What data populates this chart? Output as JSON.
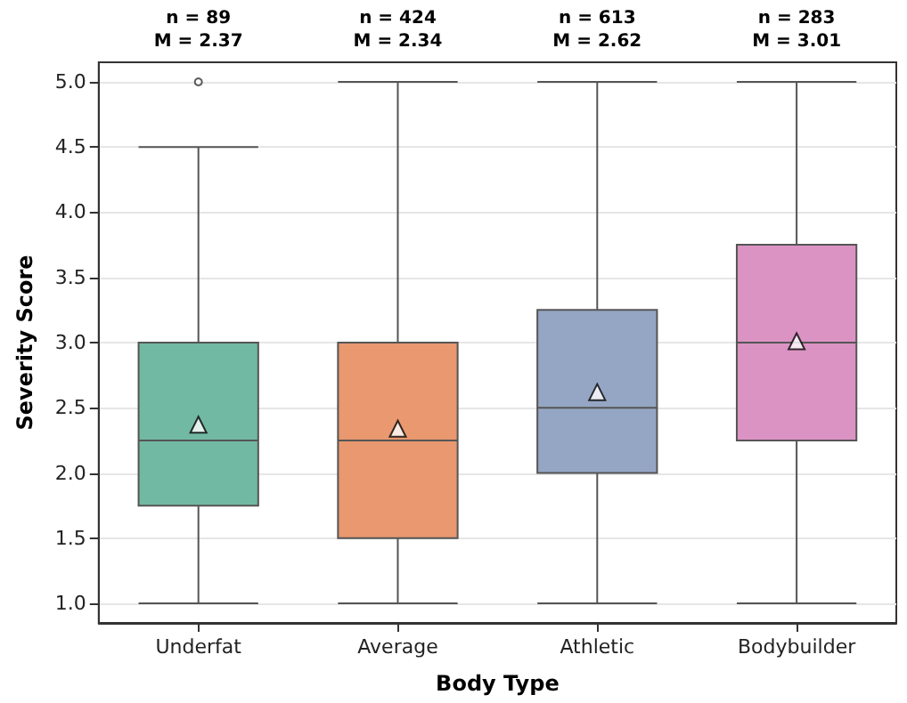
{
  "chart_data": {
    "type": "box",
    "xlabel": "Body Type",
    "ylabel": "Severity Score",
    "categories": [
      "Underfat",
      "Average",
      "Athletic",
      "Bodybuilder"
    ],
    "colors": [
      "#72b9a3",
      "#e9986f",
      "#95a6c4",
      "#db93c3"
    ],
    "boxes": [
      {
        "low": 1.0,
        "q1": 1.75,
        "median": 2.25,
        "q3": 3.0,
        "high": 4.5,
        "mean": 2.37,
        "outliers": [
          5.0
        ]
      },
      {
        "low": 1.0,
        "q1": 1.5,
        "median": 2.25,
        "q3": 3.0,
        "high": 5.0,
        "mean": 2.34
      },
      {
        "low": 1.0,
        "q1": 2.0,
        "median": 2.5,
        "q3": 3.25,
        "high": 5.0,
        "mean": 2.62
      },
      {
        "low": 1.0,
        "q1": 2.25,
        "median": 3.0,
        "q3": 3.75,
        "high": 5.0,
        "mean": 3.01
      }
    ],
    "ylim": [
      0.85,
      5.15
    ],
    "yticks": [
      {
        "value": 1,
        "label": "1.0"
      },
      {
        "value": 1.5,
        "label": "1.5"
      },
      {
        "value": 2,
        "label": "2.0"
      },
      {
        "value": 2.5,
        "label": "2.5"
      },
      {
        "value": 3,
        "label": "3.0"
      },
      {
        "value": 3.5,
        "label": "3.5"
      },
      {
        "value": 4,
        "label": "4.0"
      },
      {
        "value": 4.5,
        "label": "4.5"
      },
      {
        "value": 5,
        "label": "5.0"
      }
    ],
    "grid": "y",
    "marker": "triangle",
    "annotations": [
      "n = 89\nM = 2.37",
      "n = 424\nM = 2.34",
      "n = 613\nM = 2.62",
      "n = 283\nM = 3.01"
    ]
  }
}
